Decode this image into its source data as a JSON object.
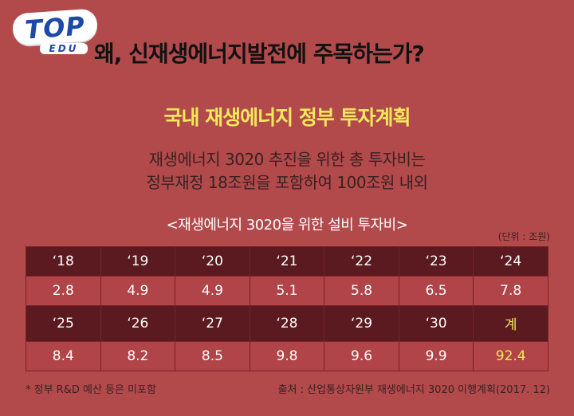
{
  "logo": {
    "main": "TOP",
    "sub": "EDU"
  },
  "title": "왜, 신재생에너지발전에 주목하는가?",
  "subtitle": "국내 재생에너지 정부 투자계획",
  "description": [
    "재생에너지 3020 추진을 위한 총 투자비는",
    "정부재정 18조원을 포함하여 100조원 내외"
  ],
  "caption": "<재생에너지 3020을 위한 설비 투자비>",
  "unit": "(단위 : 조원)",
  "table": {
    "row1_headers": [
      "‘18",
      "‘19",
      "‘20",
      "‘21",
      "‘22",
      "‘23",
      "‘24"
    ],
    "row1_values": [
      "2.8",
      "4.9",
      "4.9",
      "5.1",
      "5.8",
      "6.5",
      "7.8"
    ],
    "row2_headers": [
      "‘25",
      "‘26",
      "‘27",
      "‘28",
      "‘29",
      "‘30",
      "계"
    ],
    "row2_values": [
      "8.4",
      "8.2",
      "8.5",
      "9.8",
      "9.6",
      "9.9",
      "92.4"
    ]
  },
  "note": "* 정부 R&D 예산 등은 미포함",
  "source": "출처 : 산업통상자원부 재생에너지 3020 이행계획(2017. 12)",
  "colors": {
    "background": "#b24a4c",
    "header_row": "#5a1a20",
    "highlight": "#f6e85b"
  }
}
